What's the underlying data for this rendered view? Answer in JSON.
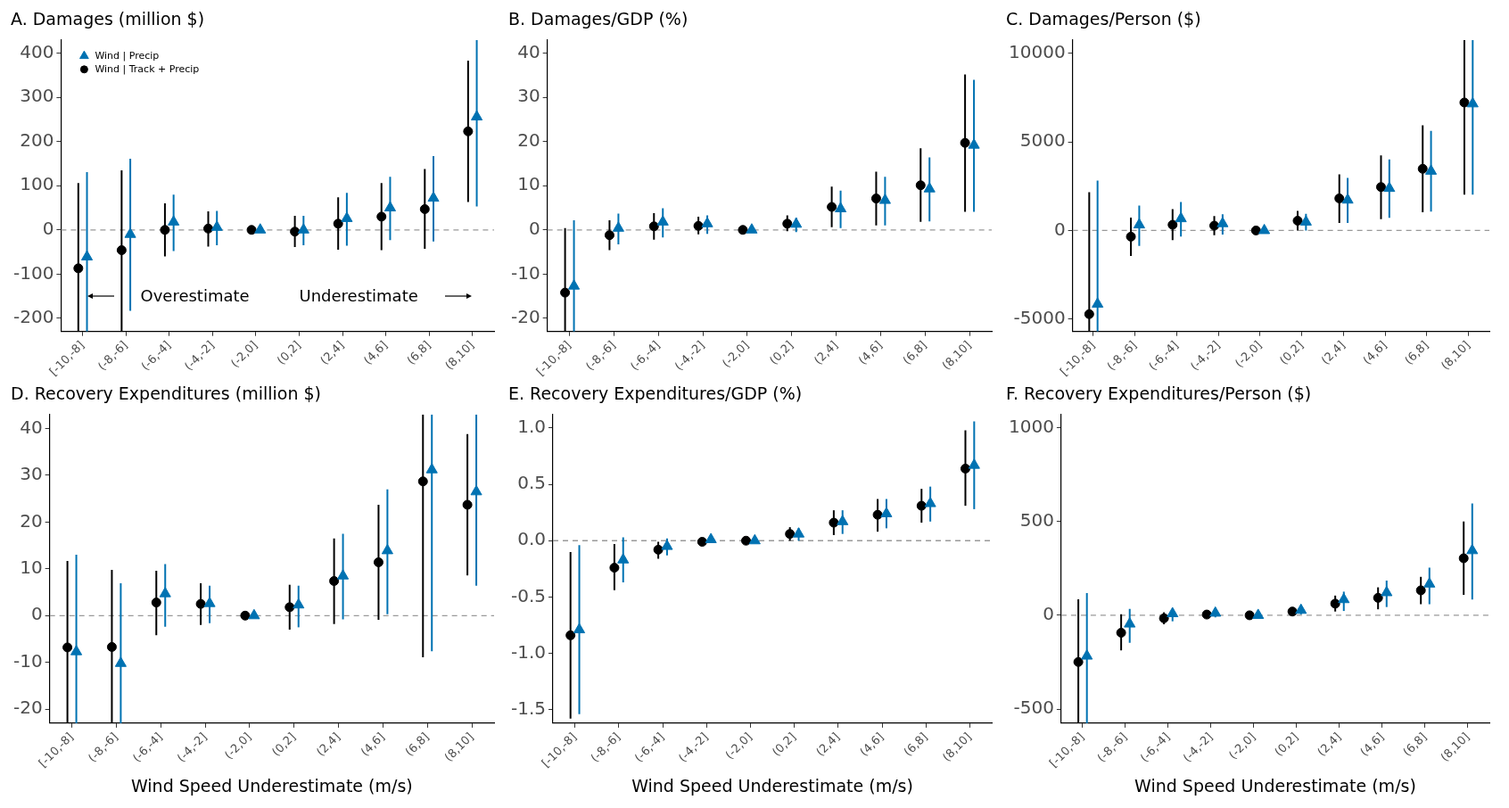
{
  "chart_data": [
    {
      "type": "scatter",
      "title": "A. Damages (million $)",
      "categories": [
        "[-10,-8]",
        "(-8,-6]",
        "(-6,-4]",
        "(-4,-2]",
        "(-2,0]",
        "(0,2]",
        "(2,4]",
        "(4,6]",
        "(6,8]",
        "(8,10]"
      ],
      "ylim": [
        -230,
        430
      ],
      "yticks": [
        -200,
        -100,
        0,
        100,
        200,
        300,
        400
      ],
      "grid": false,
      "legend": "top left",
      "annotations": [
        "Overestimate",
        "Underestimate"
      ],
      "series": [
        {
          "name": "Wind | Precip",
          "color": "#0072b2",
          "marker": "triangle",
          "values": [
            -61,
            -10,
            18,
            6,
            0,
            0,
            26,
            50,
            72,
            256
          ],
          "errors": [
            [
              -230,
              131
            ],
            [
              -183,
              161
            ],
            [
              -48,
              80
            ],
            [
              -35,
              43
            ],
            null,
            [
              -35,
              32
            ],
            [
              -36,
              84
            ],
            [
              -23,
              120
            ],
            [
              -26,
              167
            ],
            [
              53,
              430
            ]
          ]
        },
        {
          "name": "Wind | Track + Precip",
          "color": "#000000",
          "marker": "circle",
          "values": [
            -87,
            -46,
            0,
            3,
            0,
            -4,
            14,
            30,
            47,
            223
          ],
          "errors": [
            [
              -230,
              106
            ],
            [
              -230,
              135
            ],
            [
              -60,
              60
            ],
            [
              -38,
              42
            ],
            null,
            [
              -39,
              32
            ],
            [
              -45,
              74
            ],
            [
              -46,
              106
            ],
            [
              -43,
              138
            ],
            [
              63,
              383
            ]
          ]
        }
      ],
      "ref_lines": [
        {
          "axis": "y",
          "value": 0,
          "color": "#999999",
          "line_style": "dashed"
        }
      ]
    },
    {
      "type": "scatter",
      "title": "B. Damages/GDP (%)",
      "categories": [
        "[-10,-8]",
        "(-8,-6]",
        "(-6,-4]",
        "(-4,-2]",
        "(-2,0]",
        "(0,2]",
        "(2,4]",
        "(4,6]",
        "(6,8]",
        "(8,10]"
      ],
      "ylim": [
        -23,
        43
      ],
      "yticks": [
        -20,
        -10,
        0,
        10,
        20,
        30,
        40
      ],
      "grid": false,
      "series": [
        {
          "color": "#0072b2",
          "marker": "triangle",
          "values": [
            -12.7,
            0.4,
            1.8,
            1.4,
            0,
            1.3,
            4.8,
            6.7,
            9.3,
            19.2
          ],
          "errors": [
            [
              -23,
              2.2
            ],
            [
              -3.3,
              3.7
            ],
            [
              -1.7,
              4.9
            ],
            [
              -0.9,
              3.3
            ],
            null,
            [
              -0.5,
              2.8
            ],
            [
              0.4,
              8.9
            ],
            [
              1.0,
              12.0
            ],
            [
              1.9,
              16.4
            ],
            [
              4.1,
              34.0
            ]
          ]
        },
        {
          "color": "#000000",
          "marker": "circle",
          "values": [
            -14.2,
            -1.2,
            0.8,
            0.9,
            0,
            1.4,
            5.2,
            7.1,
            10.1,
            19.7
          ],
          "errors": [
            [
              -23,
              0.4
            ],
            [
              -4.6,
              2.2
            ],
            [
              -2.2,
              3.8
            ],
            [
              -1.0,
              3.0
            ],
            null,
            [
              -0.3,
              3.3
            ],
            [
              0.6,
              9.8
            ],
            [
              1.0,
              13.2
            ],
            [
              1.8,
              18.5
            ],
            [
              4.1,
              35.2
            ]
          ]
        }
      ],
      "ref_lines": [
        {
          "axis": "y",
          "value": 0,
          "color": "#999999",
          "line_style": "dashed"
        }
      ]
    },
    {
      "type": "scatter",
      "title": "C. Damages/Person ($)",
      "categories": [
        "[-10,-8]",
        "(-8,-6]",
        "(-6,-4]",
        "(-4,-2]",
        "(-2,0]",
        "(0,2]",
        "(2,4]",
        "(4,6]",
        "(6,8]",
        "(8,10]"
      ],
      "ylim": [
        -5700,
        10750
      ],
      "yticks": [
        -5000,
        0,
        5000,
        10000
      ],
      "grid": false,
      "series": [
        {
          "color": "#0072b2",
          "marker": "triangle",
          "values": [
            -4150,
            320,
            670,
            390,
            0,
            480,
            1720,
            2380,
            3350,
            7150
          ],
          "errors": [
            [
              -5700,
              2820
            ],
            [
              -870,
              1400
            ],
            [
              -340,
              1610
            ],
            [
              -230,
              920
            ],
            null,
            [
              0,
              940
            ],
            [
              430,
              2960
            ],
            [
              710,
              4010
            ],
            [
              1060,
              5620
            ],
            [
              2020,
              10750
            ]
          ]
        },
        {
          "color": "#000000",
          "marker": "circle",
          "values": [
            -4720,
            -350,
            320,
            270,
            0,
            550,
            1810,
            2450,
            3480,
            7220
          ],
          "errors": [
            [
              -5700,
              2160
            ],
            [
              -1440,
              730
            ],
            [
              -550,
              1210
            ],
            [
              -270,
              820
            ],
            null,
            [
              0,
              1100
            ],
            [
              430,
              3170
            ],
            [
              640,
              4240
            ],
            [
              1030,
              5940
            ],
            [
              2020,
              10750
            ]
          ]
        }
      ],
      "ref_lines": [
        {
          "axis": "y",
          "value": 0,
          "color": "#999999",
          "line_style": "dashed"
        }
      ]
    },
    {
      "type": "scatter",
      "title": "D. Recovery Expenditures (million $)",
      "xlabel": "Wind Speed Underestimate (m/s)",
      "categories": [
        "[-10,-8]",
        "(-8,-6]",
        "(-6,-4]",
        "(-4,-2]",
        "(-2,0]",
        "(0,2]",
        "(2,4]",
        "(4,6]",
        "(6,8]",
        "(8,10]"
      ],
      "ylim": [
        -23,
        43
      ],
      "yticks": [
        -20,
        -10,
        0,
        10,
        20,
        30,
        40
      ],
      "grid": false,
      "series": [
        {
          "color": "#0072b2",
          "marker": "triangle",
          "values": [
            -7.7,
            -10.2,
            4.7,
            2.6,
            0,
            2.3,
            8.5,
            13.9,
            31.2,
            26.5
          ],
          "errors": [
            [
              -23,
              13.0
            ],
            [
              -23,
              6.9
            ],
            [
              -2.4,
              11.0
            ],
            [
              -1.6,
              6.4
            ],
            null,
            [
              -2.5,
              6.4
            ],
            [
              -0.8,
              17.5
            ],
            [
              0.3,
              27.0
            ],
            [
              -7.6,
              43
            ],
            [
              6.4,
              43
            ]
          ]
        },
        {
          "color": "#000000",
          "marker": "circle",
          "values": [
            -6.8,
            -6.7,
            2.8,
            2.5,
            0,
            1.8,
            7.4,
            11.4,
            28.7,
            23.7
          ],
          "errors": [
            [
              -23,
              11.7
            ],
            [
              -23,
              9.8
            ],
            [
              -4.2,
              9.6
            ],
            [
              -2.0,
              6.9
            ],
            null,
            [
              -3.0,
              6.6
            ],
            [
              -1.8,
              16.5
            ],
            [
              -0.9,
              23.7
            ],
            [
              -8.9,
              43
            ],
            [
              8.6,
              38.8
            ]
          ]
        }
      ],
      "ref_lines": [
        {
          "axis": "y",
          "value": 0,
          "color": "#999999",
          "line_style": "dashed"
        }
      ]
    },
    {
      "type": "scatter",
      "title": "E. Recovery Expenditures/GDP (%)",
      "xlabel": "Wind Speed Underestimate (m/s)",
      "categories": [
        "[-10,-8]",
        "(-8,-6]",
        "(-6,-4]",
        "(-4,-2]",
        "(-2,0]",
        "(0,2]",
        "(2,4]",
        "(4,6]",
        "(6,8]",
        "(8,10]"
      ],
      "ylim": [
        -1.62,
        1.12
      ],
      "yticks": [
        {
          "value": -1.5,
          "label": "-1.5"
        },
        {
          "value": -1,
          "label": "-1.0"
        },
        {
          "value": -0.5,
          "label": "-0.5"
        },
        {
          "value": 0,
          "label": "0.0"
        },
        {
          "value": 0.5,
          "label": "0.5"
        },
        {
          "value": 1,
          "label": "1.0"
        }
      ],
      "grid": false,
      "series": [
        {
          "color": "#0072b2",
          "marker": "triangle",
          "values": [
            -0.79,
            -0.17,
            -0.05,
            0.01,
            0,
            0.06,
            0.17,
            0.24,
            0.33,
            0.67
          ],
          "errors": [
            [
              -1.54,
              -0.04
            ],
            [
              -0.37,
              0.03
            ],
            [
              -0.13,
              0.02
            ],
            [
              -0.02,
              0.03
            ],
            null,
            [
              0.0,
              0.11
            ],
            [
              0.06,
              0.27
            ],
            [
              0.11,
              0.37
            ],
            [
              0.17,
              0.48
            ],
            [
              0.28,
              1.06
            ]
          ]
        },
        {
          "color": "#000000",
          "marker": "circle",
          "values": [
            -0.84,
            -0.24,
            -0.08,
            -0.01,
            0,
            0.06,
            0.16,
            0.23,
            0.31,
            0.64
          ],
          "errors": [
            [
              -1.58,
              -0.1
            ],
            [
              -0.44,
              -0.03
            ],
            [
              -0.16,
              -0.01
            ],
            [
              -0.04,
              0.02
            ],
            null,
            [
              0.0,
              0.12
            ],
            [
              0.05,
              0.27
            ],
            [
              0.08,
              0.37
            ],
            [
              0.16,
              0.46
            ],
            [
              0.31,
              0.98
            ]
          ]
        }
      ],
      "ref_lines": [
        {
          "axis": "y",
          "value": 0,
          "color": "#999999",
          "line_style": "dashed"
        }
      ]
    },
    {
      "type": "scatter",
      "title": "F. Recovery Expenditures/Person ($)",
      "xlabel": "Wind Speed Underestimate (m/s)",
      "categories": [
        "[-10,-8]",
        "(-8,-6]",
        "(-6,-4]",
        "(-4,-2]",
        "(-2,0]",
        "(0,2]",
        "(2,4]",
        "(4,6]",
        "(6,8]",
        "(8,10]"
      ],
      "ylim": [
        -575,
        1070
      ],
      "yticks": [
        -500,
        0,
        500,
        1000
      ],
      "grid": false,
      "series": [
        {
          "color": "#0072b2",
          "marker": "triangle",
          "values": [
            -217,
            -46,
            9,
            12,
            0,
            27,
            84,
            121,
            167,
            345
          ],
          "errors": [
            [
              -575,
              119
            ],
            [
              -146,
              34
            ],
            [
              -32,
              27
            ],
            [
              -11,
              27
            ],
            null,
            [
              5,
              44
            ],
            [
              23,
              126
            ],
            [
              44,
              185
            ],
            [
              59,
              254
            ],
            [
              84,
              596
            ]
          ]
        },
        {
          "color": "#000000",
          "marker": "circle",
          "values": [
            -249,
            -93,
            -16,
            4,
            0,
            20,
            62,
            93,
            133,
            304
          ],
          "errors": [
            [
              -575,
              85
            ],
            [
              -187,
              5
            ],
            [
              -48,
              16
            ],
            [
              -16,
              23
            ],
            null,
            [
              -2,
              41
            ],
            [
              20,
              105
            ],
            [
              32,
              149
            ],
            [
              59,
              205
            ],
            [
              109,
              500
            ]
          ]
        }
      ],
      "ref_lines": [
        {
          "axis": "y",
          "value": 0,
          "color": "#999999",
          "line_style": "dashed"
        }
      ]
    }
  ]
}
